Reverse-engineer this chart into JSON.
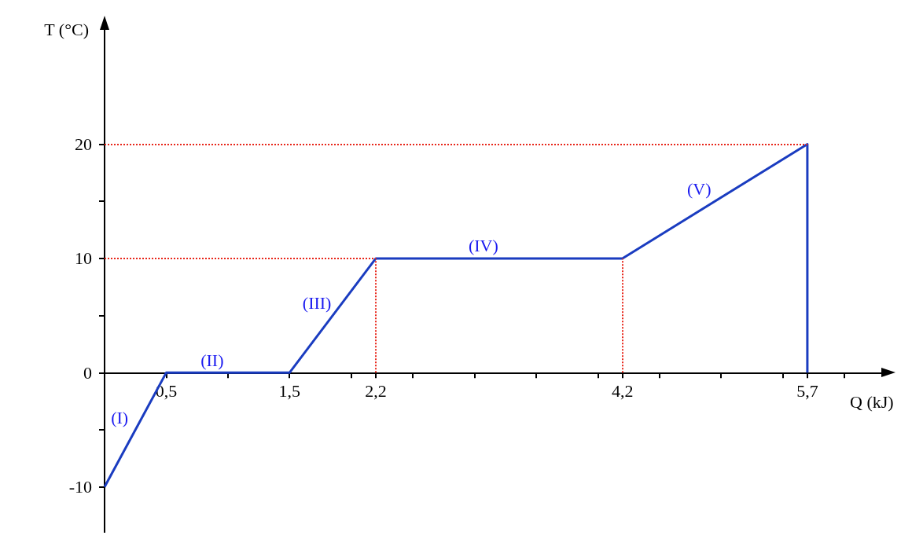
{
  "chart_data": {
    "type": "line",
    "xlabel": "Q (kJ)",
    "ylabel": "T (°C)",
    "x": [
      0,
      0.5,
      1.5,
      2.2,
      4.2,
      5.7,
      5.7
    ],
    "values": [
      -10,
      0,
      0,
      10,
      10,
      20,
      0
    ],
    "color": "#1a3cc0",
    "marker": "none",
    "line_style": "solid",
    "xlim": [
      0,
      6.3
    ],
    "ylim": [
      -14,
      30
    ],
    "xticks": [
      {
        "value": 0.5,
        "label": "0,5"
      },
      {
        "value": 1,
        "label": null
      },
      {
        "value": 1.5,
        "label": "1,5"
      },
      {
        "value": 2,
        "label": null
      },
      {
        "value": 2.2,
        "label": "2,2"
      },
      {
        "value": 2.5,
        "label": null
      },
      {
        "value": 3,
        "label": null
      },
      {
        "value": 3.5,
        "label": null
      },
      {
        "value": 4,
        "label": null
      },
      {
        "value": 4.2,
        "label": "4,2"
      },
      {
        "value": 4.5,
        "label": null
      },
      {
        "value": 5,
        "label": null
      },
      {
        "value": 5.5,
        "label": null
      },
      {
        "value": 5.7,
        "label": "5,7"
      },
      {
        "value": 6,
        "label": null
      }
    ],
    "yticks": [
      -10,
      {
        "value": -5,
        "label": null
      },
      0,
      {
        "value": 5,
        "label": null
      },
      10,
      {
        "value": 15,
        "label": null
      },
      20
    ],
    "ref_lines": [
      {
        "axis": "x",
        "value": 2.2,
        "color": "#e8261a",
        "line_style": "dotted"
      },
      {
        "axis": "x",
        "value": 4.2,
        "color": "#e8261a",
        "line_style": "dotted"
      },
      {
        "axis": "y",
        "value": 10,
        "color": "#e8261a",
        "line_style": "dotted"
      },
      {
        "axis": "y",
        "value": 20,
        "color": "#e8261a",
        "line_style": "dotted"
      }
    ],
    "annotations": [
      {
        "text": "(I)",
        "x": 0.25,
        "y": -5
      },
      {
        "text": "(II)",
        "x": 1,
        "y": 0
      },
      {
        "text": "(III)",
        "x": 1.85,
        "y": 5
      },
      {
        "text": "(IV)",
        "x": 3.2,
        "y": 10
      },
      {
        "text": "(V)",
        "x": 4.95,
        "y": 15
      }
    ]
  }
}
